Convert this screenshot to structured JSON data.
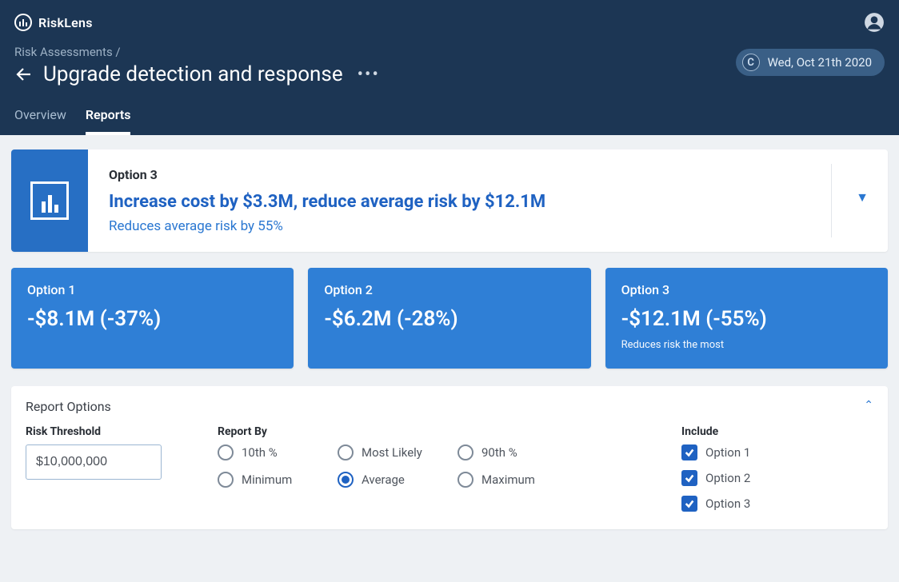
{
  "colors": {
    "header_bg": "#1c3654",
    "accent": "#276fc4",
    "card_bg": "#2f7fd6",
    "link_blue": "#1f62c2",
    "page_bg": "#eef1f4"
  },
  "brand": {
    "name": "RiskLens"
  },
  "breadcrumb": "Risk Assessments /",
  "page_title": "Upgrade detection and response",
  "date_badge": {
    "letter": "C",
    "text": "Wed, Oct 21th 2020"
  },
  "tabs": [
    {
      "label": "Overview",
      "active": false
    },
    {
      "label": "Reports",
      "active": true
    }
  ],
  "summary": {
    "option_label": "Option 3",
    "headline": "Increase cost by $3.3M, reduce average risk by $12.1M",
    "sub": "Reduces average risk by 55%"
  },
  "option_cards": [
    {
      "label": "Option 1",
      "value": "-$8.1M (-37%)",
      "note": ""
    },
    {
      "label": "Option 2",
      "value": "-$6.2M (-28%)",
      "note": ""
    },
    {
      "label": "Option 3",
      "value": "-$12.1M (-55%)",
      "note": "Reduces risk the most"
    }
  ],
  "report_options": {
    "title": "Report Options",
    "threshold": {
      "label": "Risk Threshold",
      "value": "$10,000,000"
    },
    "report_by": {
      "label": "Report By",
      "options": [
        {
          "label": "10th %",
          "selected": false
        },
        {
          "label": "Most Likely",
          "selected": false
        },
        {
          "label": "90th %",
          "selected": false
        },
        {
          "label": "Minimum",
          "selected": false
        },
        {
          "label": "Average",
          "selected": true
        },
        {
          "label": "Maximum",
          "selected": false
        }
      ]
    },
    "include": {
      "label": "Include",
      "options": [
        {
          "label": "Option 1",
          "checked": true
        },
        {
          "label": "Option 2",
          "checked": true
        },
        {
          "label": "Option 3",
          "checked": true
        }
      ]
    }
  }
}
